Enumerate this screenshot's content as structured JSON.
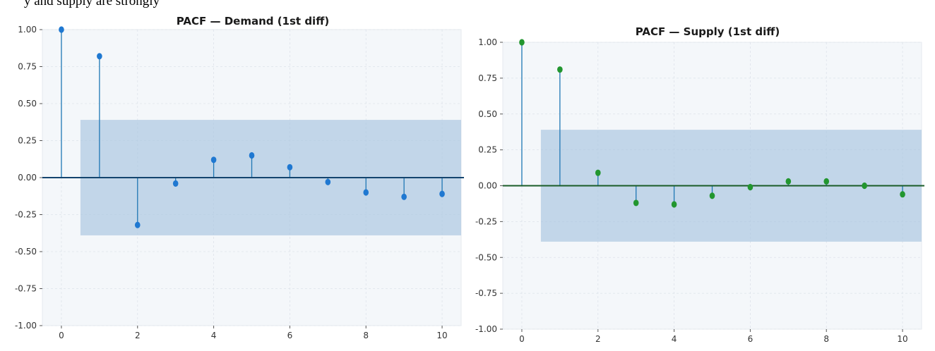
{
  "caption_fragment": "y and supply are strongly",
  "colors": {
    "panel_background": "#f4f7fa",
    "grid": "#dde3ea",
    "confidence_band": "#a9c6e0",
    "demand_stem": "#1f77b4",
    "demand_marker": "#1f78d1",
    "demand_baseline": "#14446e",
    "supply_stem": "#1f77b4",
    "supply_marker": "#22962f",
    "supply_baseline": "#1a5c28",
    "tick_text": "#333333"
  },
  "chart_data": [
    {
      "type": "stem",
      "title": "PACF — Demand (1st diff)",
      "xlabel": "",
      "ylabel": "",
      "xlim": [
        -0.5,
        10.5
      ],
      "ylim": [
        -1.0,
        1.0
      ],
      "x_ticks": [
        0,
        2,
        4,
        6,
        8,
        10
      ],
      "y_ticks": [
        1.0,
        0.75,
        0.5,
        0.25,
        0.0,
        -0.25,
        -0.5,
        -0.75,
        -1.0
      ],
      "y_tick_labels": [
        "1.00",
        "0.75",
        "0.50",
        "0.25",
        "0.00",
        "-0.25",
        "-0.50",
        "-0.75",
        "-1.00"
      ],
      "grid": true,
      "confidence_interval": {
        "lower": -0.39,
        "upper": 0.39,
        "x_from": 0.5,
        "x_to": 10.5
      },
      "lags": [
        0,
        1,
        2,
        3,
        4,
        5,
        6,
        7,
        8,
        9,
        10
      ],
      "values": [
        1.0,
        0.82,
        -0.32,
        -0.04,
        0.12,
        0.15,
        0.07,
        -0.03,
        -0.1,
        -0.13,
        -0.11
      ]
    },
    {
      "type": "stem",
      "title": "PACF — Supply (1st diff)",
      "xlabel": "",
      "ylabel": "",
      "xlim": [
        -0.5,
        10.5
      ],
      "ylim": [
        -1.0,
        1.0
      ],
      "x_ticks": [
        0,
        2,
        4,
        6,
        8,
        10
      ],
      "y_ticks": [
        1.0,
        0.75,
        0.5,
        0.25,
        0.0,
        -0.25,
        -0.5,
        -0.75,
        -1.0
      ],
      "y_tick_labels": [
        "1.00",
        "0.75",
        "0.50",
        "0.25",
        "0.00",
        "-0.25",
        "-0.50",
        "-0.75",
        "-1.00"
      ],
      "grid": true,
      "confidence_interval": {
        "lower": -0.39,
        "upper": 0.39,
        "x_from": 0.5,
        "x_to": 10.5
      },
      "lags": [
        0,
        1,
        2,
        3,
        4,
        5,
        6,
        7,
        8,
        9,
        10
      ],
      "values": [
        1.0,
        0.81,
        0.09,
        -0.12,
        -0.13,
        -0.07,
        -0.01,
        0.03,
        0.03,
        0.0,
        -0.06
      ]
    }
  ]
}
